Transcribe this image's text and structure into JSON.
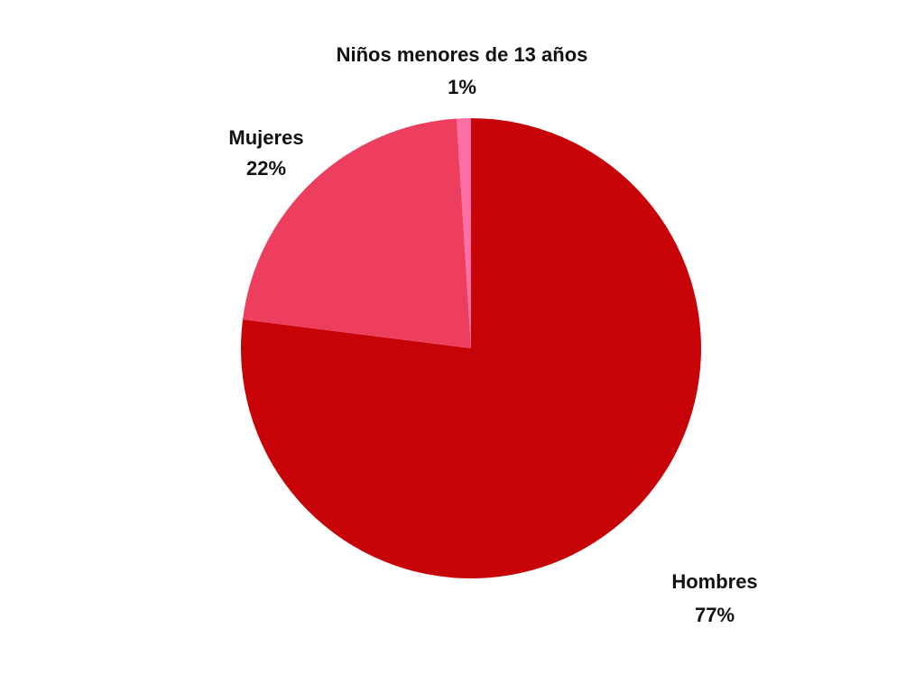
{
  "chart_data": {
    "type": "pie",
    "title": "",
    "start_angle_deg": 0,
    "direction": "clockwise",
    "slices": [
      {
        "label": "Hombres",
        "value": 77,
        "value_label": "77%",
        "color": "#c80307"
      },
      {
        "label": "Mujeres",
        "value": 22,
        "value_label": "22%",
        "color": "#ee3e5d"
      },
      {
        "label": "Niños menores de 13 años",
        "value": 1,
        "value_label": "1%",
        "color": "#ff6fa3"
      }
    ]
  }
}
